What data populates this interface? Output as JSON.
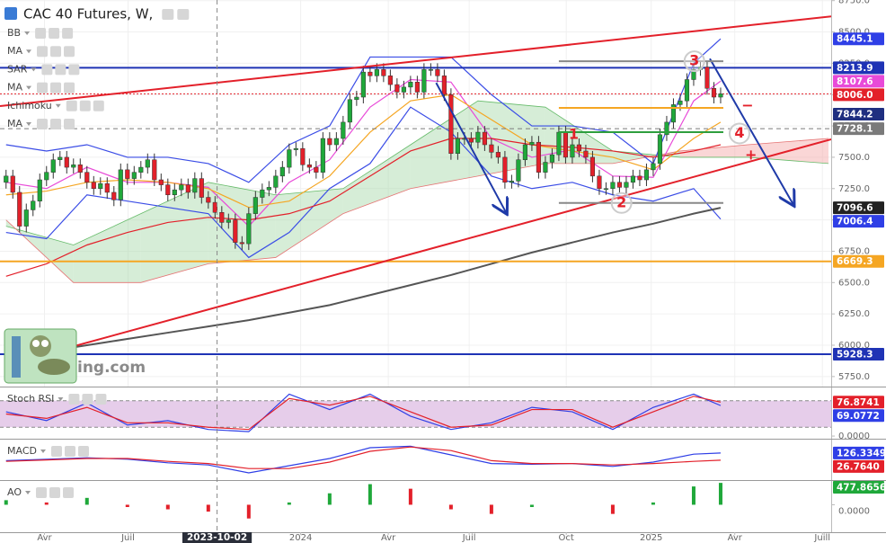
{
  "chart_data": {
    "type": "candlestick",
    "title": "CAC 40 Futures, W,",
    "indicator_labels": [
      "BB",
      "MA",
      "SAR",
      "MA",
      "Ichimoku",
      "MA"
    ],
    "watermark": "ing.com",
    "xlim": [
      -0.9,
      122.4
    ],
    "xticks": [
      {
        "value": 5.7,
        "label": "Avr"
      },
      {
        "value": 18.1,
        "label": "Juil"
      },
      {
        "value": 43.7,
        "label": "2024"
      },
      {
        "value": 56.7,
        "label": "Avr"
      },
      {
        "value": 68.7,
        "label": "Juil"
      },
      {
        "value": 83.1,
        "label": "Oct"
      },
      {
        "value": 95.7,
        "label": "2025"
      },
      {
        "value": 108.1,
        "label": "Avr"
      },
      {
        "value": 121.1,
        "label": "Juill"
      }
    ],
    "crosshair": {
      "value": 31.3,
      "label": "2023-10-02"
    },
    "ylim": [
      5670,
      8755
    ],
    "yticks": [
      {
        "value": 5750,
        "label": "5750.0"
      },
      {
        "value": 6000,
        "label": "6000.0"
      },
      {
        "value": 6250,
        "label": "6250.0"
      },
      {
        "value": 6500,
        "label": "6500.0"
      },
      {
        "value": 6750,
        "label": "6750.0"
      },
      {
        "value": 7000,
        "label": "7000.0"
      },
      {
        "value": 7250,
        "label": "7250.0"
      },
      {
        "value": 7500,
        "label": "7500.0"
      },
      {
        "value": 7750,
        "label": "7750.0"
      },
      {
        "value": 8000,
        "label": "8000.0"
      },
      {
        "value": 8250,
        "label": "8250.0"
      },
      {
        "value": 8500,
        "label": "8500.0"
      },
      {
        "value": 8750,
        "label": "8750.0"
      }
    ],
    "grid": true,
    "up_color": "#1fa83a",
    "down_color": "#e3202a",
    "open": [
      7300,
      7350,
      7220,
      6950,
      7080,
      7150,
      7320,
      7380,
      7480,
      7500,
      7420,
      7440,
      7380,
      7300,
      7250,
      7290,
      7220,
      7160,
      7400,
      7330,
      7380,
      7420,
      7480,
      7320,
      7280,
      7200,
      7240,
      7280,
      7220,
      7330,
      7180,
      7140,
      7060,
      6980,
      7000,
      6820,
      6810,
      7050,
      7180,
      7240,
      7260,
      7350,
      7420,
      7560,
      7570,
      7440,
      7420,
      7380,
      7650,
      7600,
      7650,
      7780,
      7960,
      7980,
      8180,
      8150,
      8200,
      8150,
      8080,
      8020,
      8060,
      8100,
      8020,
      8200,
      8200,
      8150,
      8000,
      7530,
      7650,
      7650,
      7620,
      7700,
      7600,
      7540,
      7500,
      7300,
      7310,
      7480,
      7600,
      7620,
      7380,
      7460,
      7520,
      7700,
      7500,
      7600,
      7550,
      7500,
      7350,
      7250,
      7250,
      7300,
      7260,
      7300,
      7350,
      7320,
      7400,
      7450,
      7680,
      7780,
      7920,
      7950,
      8120,
      8200,
      8220,
      8050,
      7980
    ],
    "high": [
      7400,
      7400,
      7270,
      7130,
      7200,
      7370,
      7430,
      7530,
      7550,
      7550,
      7490,
      7490,
      7430,
      7350,
      7340,
      7340,
      7270,
      7450,
      7450,
      7430,
      7470,
      7530,
      7530,
      7370,
      7330,
      7290,
      7330,
      7330,
      7380,
      7380,
      7230,
      7190,
      7110,
      7050,
      7050,
      6870,
      7100,
      7230,
      7290,
      7310,
      7400,
      7470,
      7610,
      7620,
      7620,
      7490,
      7470,
      7700,
      7700,
      7700,
      7830,
      8010,
      8030,
      8230,
      8230,
      8250,
      8250,
      8200,
      8130,
      8110,
      8150,
      8150,
      8250,
      8250,
      8250,
      8200,
      8050,
      7700,
      7700,
      7700,
      7750,
      7750,
      7650,
      7590,
      7550,
      7360,
      7530,
      7650,
      7670,
      7670,
      7510,
      7570,
      7750,
      7750,
      7650,
      7650,
      7600,
      7550,
      7400,
      7300,
      7350,
      7350,
      7350,
      7400,
      7400,
      7450,
      7500,
      7730,
      7830,
      7970,
      8000,
      8170,
      8250,
      8270,
      8270,
      8100,
      8056
    ],
    "low": [
      7250,
      7170,
      6900,
      6900,
      7030,
      7100,
      7270,
      7330,
      7430,
      7370,
      7370,
      7330,
      7250,
      7200,
      7200,
      7170,
      7110,
      7110,
      7280,
      7280,
      7330,
      7370,
      7270,
      7230,
      7150,
      7150,
      7190,
      7170,
      7170,
      7130,
      7090,
      7010,
      6930,
      6930,
      6770,
      6760,
      6760,
      7000,
      7130,
      7190,
      7210,
      7300,
      7370,
      7510,
      7390,
      7370,
      7330,
      7330,
      7550,
      7550,
      7600,
      7730,
      7910,
      7930,
      8100,
      8100,
      8100,
      8030,
      7970,
      7970,
      8010,
      7970,
      7970,
      8150,
      8100,
      7950,
      7480,
      7480,
      7600,
      7570,
      7570,
      7550,
      7490,
      7450,
      7250,
      7250,
      7260,
      7430,
      7550,
      7330,
      7330,
      7410,
      7470,
      7450,
      7450,
      7500,
      7450,
      7300,
      7200,
      7200,
      7200,
      7210,
      7210,
      7250,
      7270,
      7270,
      7350,
      7400,
      7630,
      7730,
      7870,
      7900,
      8070,
      8150,
      8000,
      7930,
      7930
    ],
    "close": [
      7350,
      7220,
      6950,
      7080,
      7150,
      7320,
      7380,
      7480,
      7500,
      7420,
      7440,
      7380,
      7300,
      7250,
      7290,
      7220,
      7160,
      7400,
      7330,
      7380,
      7420,
      7480,
      7320,
      7280,
      7200,
      7240,
      7280,
      7220,
      7330,
      7180,
      7140,
      7060,
      6980,
      7000,
      6820,
      6810,
      7050,
      7180,
      7240,
      7260,
      7350,
      7420,
      7560,
      7570,
      7440,
      7420,
      7380,
      7650,
      7600,
      7650,
      7780,
      7960,
      7980,
      8180,
      8150,
      8200,
      8150,
      8080,
      8020,
      8060,
      8100,
      8020,
      8200,
      8200,
      8150,
      8000,
      7530,
      7650,
      7650,
      7620,
      7700,
      7600,
      7540,
      7500,
      7300,
      7310,
      7480,
      7600,
      7620,
      7380,
      7460,
      7520,
      7700,
      7500,
      7600,
      7550,
      7500,
      7350,
      7250,
      7250,
      7300,
      7260,
      7300,
      7350,
      7320,
      7400,
      7450,
      7680,
      7780,
      7920,
      7950,
      8120,
      8200,
      8220,
      8050,
      7980,
      8006
    ],
    "indicator_x": [
      0,
      6,
      12,
      18,
      24,
      30,
      36,
      42,
      48,
      54,
      60,
      66,
      72,
      78,
      84,
      90,
      96,
      102,
      106
    ],
    "series": [
      {
        "color": "#3b4de6",
        "values": [
          7600,
          7550,
          7600,
          7500,
          7500,
          7450,
          7300,
          7600,
          7750,
          8300,
          8300,
          8300,
          8000,
          7750,
          7750,
          7700,
          7450,
          8250,
          8445.1
        ]
      },
      {
        "color": "#3b4de6",
        "values": [
          6900,
          6850,
          7200,
          7150,
          7100,
          7050,
          6700,
          6900,
          7250,
          7450,
          7900,
          7700,
          7350,
          7250,
          7300,
          7200,
          7150,
          7250,
          7006.4
        ]
      },
      {
        "color": "#e84ad8",
        "values": [
          7300,
          7250,
          7420,
          7300,
          7300,
          7260,
          6950,
          7300,
          7480,
          7900,
          8120,
          8100,
          7650,
          7500,
          7560,
          7350,
          7340,
          7950,
          8107.6
        ]
      },
      {
        "color": "#f5a623",
        "values": [
          7200,
          7230,
          7300,
          7320,
          7300,
          7250,
          7100,
          7150,
          7350,
          7700,
          7950,
          8000,
          7800,
          7600,
          7550,
          7500,
          7400,
          7650,
          7780
        ]
      },
      {
        "color": "#e3202a",
        "values": [
          6550,
          6650,
          6800,
          6900,
          6980,
          7020,
          7000,
          7050,
          7150,
          7350,
          7550,
          7650,
          7650,
          7600,
          7580,
          7550,
          7500,
          7550,
          7600
        ]
      },
      {
        "color": "#555555",
        "values": [
          5900,
          5950,
          6000,
          6050,
          6100,
          6150,
          6200,
          6260,
          6320,
          6400,
          6480,
          6560,
          6650,
          6740,
          6820,
          6900,
          6970,
          7050,
          7096.6
        ]
      }
    ],
    "cloud": {
      "x": [
        0,
        10,
        20,
        30,
        40,
        50,
        60,
        70,
        80,
        90,
        100,
        110,
        122
      ],
      "span_a": [
        6950,
        6800,
        7050,
        7300,
        7200,
        7250,
        7600,
        7950,
        7900,
        7550,
        7500,
        7500,
        7450
      ],
      "span_b": [
        7000,
        6500,
        6500,
        6650,
        6700,
        7050,
        7250,
        7350,
        7450,
        7450,
        7550,
        7600,
        7650
      ],
      "up_color": "#a5d6a7",
      "down_color": "#f4a3a3"
    },
    "price_tags": [
      {
        "value": 8445.1,
        "color": "#2f3fe6"
      },
      {
        "value": 8213.9,
        "color": "#1f33b5",
        "line": "solid"
      },
      {
        "value": 8107.6,
        "color": "#e84ad8"
      },
      {
        "value": 8006,
        "label": "8006.0",
        "color": "#e3202a",
        "line": "dotted"
      },
      {
        "value": 7844.2,
        "color": "#1f2f80"
      },
      {
        "value": 7728.1,
        "color": "#7a7a7a",
        "line": "dashed"
      },
      {
        "value": 7096.6,
        "color": "#222222"
      },
      {
        "value": 7006.4,
        "color": "#2f3fe6"
      },
      {
        "value": 6669.3,
        "color": "#f5a623",
        "line": "solid"
      },
      {
        "value": 5928.3,
        "color": "#1f33b5",
        "line": "solid"
      }
    ],
    "trendlines": [
      {
        "x": [
          -0.9,
          122.4
        ],
        "y": [
          7908,
          8624
        ],
        "color": "#e3202a"
      },
      {
        "x": [
          10.4,
          122.4
        ],
        "y": [
          5997,
          7643
        ],
        "color": "#e3202a"
      },
      {
        "x": [
          63.8,
          74.2
        ],
        "y": [
          8094,
          7056
        ],
        "color": "#1f3aa8",
        "arrow": true
      },
      {
        "x": [
          104.4,
          116.8
        ],
        "y": [
          8287,
          7121
        ],
        "color": "#1f3aa8",
        "arrow": true
      },
      {
        "x": [
          82,
          106.4
        ],
        "y": [
          8266,
          8266
        ],
        "color": "#888888"
      },
      {
        "x": [
          82,
          106.4
        ],
        "y": [
          7135,
          7135
        ],
        "color": "#888888"
      },
      {
        "x": [
          82,
          106.4
        ],
        "y": [
          7894,
          7894
        ],
        "color": "#f5a623"
      },
      {
        "x": [
          82,
          106.4
        ],
        "y": [
          7700,
          7700
        ],
        "color": "#2e9e3e"
      }
    ],
    "annotations": [
      {
        "text": "1",
        "x": 84.2,
        "y": 7680
      },
      {
        "text": "2",
        "x": 91.3,
        "y": 7135,
        "circle": true
      },
      {
        "text": "3",
        "x": 102.1,
        "y": 8266,
        "circle": true
      },
      {
        "text": "4",
        "x": 108.8,
        "y": 7690,
        "circle": true
      },
      {
        "text": "−",
        "x": 110,
        "y": 7910
      },
      {
        "text": "+",
        "x": 110.5,
        "y": 7515
      }
    ],
    "panels": [
      {
        "title": "Stoch RSI",
        "ylim": [
          -6,
          108
        ],
        "yticks": [
          {
            "value": 0,
            "label": "0.0000"
          }
        ],
        "band": [
          20,
          80
        ],
        "series": [
          {
            "color": "#2f3fe6",
            "values": [
              55,
              35,
              75,
              25,
              35,
              15,
              10,
              95,
              60,
              95,
              45,
              15,
              30,
              65,
              55,
              15,
              65,
              95,
              69.0772
            ]
          },
          {
            "color": "#e3202a",
            "values": [
              50,
              40,
              65,
              30,
              30,
              20,
              15,
              85,
              70,
              90,
              55,
              20,
              25,
              60,
              60,
              20,
              55,
              90,
              76.8741
            ]
          }
        ],
        "tags": [
          {
            "value": 76.8741,
            "color": "#e3202a"
          },
          {
            "value": 69.0772,
            "color": "#2f3fe6"
          }
        ]
      },
      {
        "title": "MACD",
        "ylim": [
          -250,
          300
        ],
        "series": [
          {
            "color": "#2f3fe6",
            "values": [
              20,
              40,
              60,
              40,
              -10,
              -40,
              -150,
              -50,
              50,
              200,
              220,
              100,
              -20,
              -30,
              -20,
              -60,
              0,
              110,
              126.3349
            ]
          },
          {
            "color": "#e3202a",
            "values": [
              10,
              30,
              50,
              50,
              10,
              -20,
              -90,
              -90,
              0,
              150,
              210,
              160,
              20,
              -20,
              -20,
              -40,
              -20,
              10,
              26.764
            ]
          }
        ],
        "tags": [
          {
            "value": 126.3349,
            "color": "#2f3fe6"
          },
          {
            "value": 26.764,
            "label": "26.7640",
            "color": "#e3202a"
          }
        ]
      },
      {
        "title": "AO",
        "ylim": [
          -600,
          500
        ],
        "yticks": [
          {
            "value": 0,
            "label": "0.0000"
          }
        ],
        "bars": [
          100,
          50,
          150,
          -50,
          -100,
          -150,
          -300,
          50,
          250,
          450,
          350,
          -100,
          -200,
          -50,
          0,
          -200,
          50,
          400,
          477.8656
        ],
        "tags": [
          {
            "value": 477.8656,
            "color": "#1fa83a"
          }
        ]
      }
    ]
  }
}
